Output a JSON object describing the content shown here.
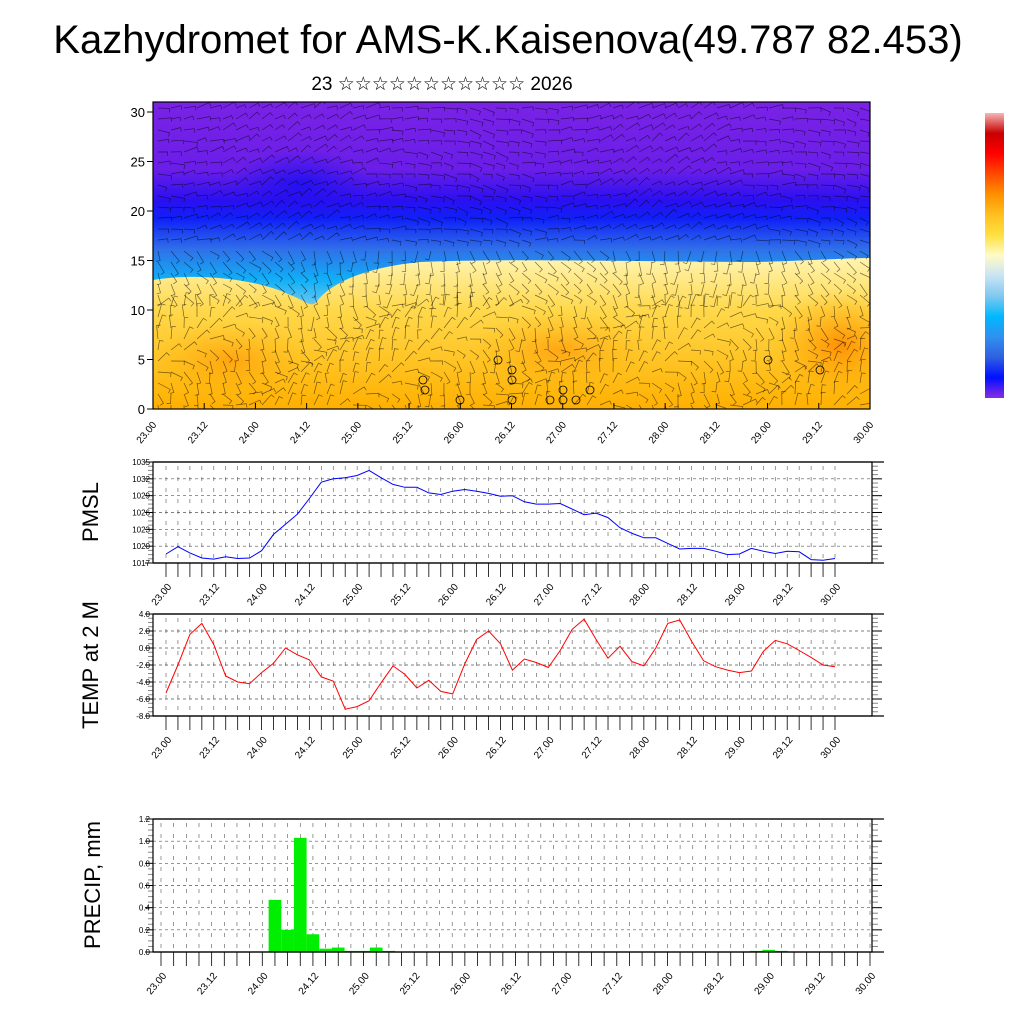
{
  "title": "Kazhydromet for AMS-K.Kaisenova(49.787 82.453)",
  "subtitle": "23 ☆☆☆☆☆☆☆☆☆☆☆ 2026",
  "x_labels": [
    "23.00",
    "23.12",
    "24.00",
    "24.12",
    "25.00",
    "25.12",
    "26.00",
    "26.12",
    "27.00",
    "27.12",
    "28.00",
    "28.12",
    "29.00",
    "29.12",
    "30.00"
  ],
  "colorbar": {
    "colors": [
      "#f7b6b6",
      "#c80000",
      "#ff0000",
      "#ff4a00",
      "#ff9000",
      "#ffc020",
      "#ffe040",
      "#fffbc8",
      "#c8e4f4",
      "#80c8ee",
      "#00b8ff",
      "#3090f0",
      "#3060e0",
      "#0010ff",
      "#8a2be2"
    ]
  },
  "chart_data": [
    {
      "type": "heatmap",
      "name": "cross-section",
      "ylabel": "",
      "yticks": [
        0,
        5,
        10,
        15,
        20,
        25,
        30
      ],
      "ylim": [
        0,
        30
      ],
      "description_colors": {
        "cold": "#7a22e6",
        "warm": "#ffa500"
      }
    },
    {
      "type": "line",
      "name": "pmsl",
      "ylabel": "PMSL",
      "yticks": [
        "1017",
        "1020",
        "1023",
        "1026",
        "1029",
        "1032",
        "1035"
      ],
      "ylim": [
        1017,
        1035
      ],
      "color": "#0000ff",
      "interval_hours": 3,
      "values": [
        1018.6,
        1019.9,
        1018.8,
        1017.9,
        1017.7,
        1018.1,
        1017.8,
        1017.9,
        1019.2,
        1022.1,
        1023.9,
        1025.7,
        1028.5,
        1031.4,
        1032.0,
        1032.2,
        1032.6,
        1033.5,
        1032.2,
        1031.0,
        1030.5,
        1030.5,
        1029.5,
        1029.2,
        1029.8,
        1030.1,
        1029.8,
        1029.4,
        1028.9,
        1029.0,
        1027.9,
        1027.5,
        1027.5,
        1027.6,
        1026.6,
        1025.6,
        1025.9,
        1025.1,
        1023.3,
        1022.3,
        1021.5,
        1021.5,
        1020.5,
        1019.5,
        1019.6,
        1019.6,
        1019.1,
        1018.5,
        1018.6,
        1019.6,
        1019.1,
        1018.7,
        1019.1,
        1019.0,
        1017.6,
        1017.5,
        1017.8
      ]
    },
    {
      "type": "line",
      "name": "temp",
      "ylabel": "TEMP at 2 M",
      "yticks": [
        "-8.0",
        "-6.0",
        "-4.0",
        "-2.0",
        "0.0",
        "2.0",
        "4.0"
      ],
      "ylim": [
        -8,
        4
      ],
      "color": "#ff0000",
      "interval_hours": 3,
      "values": [
        -5.3,
        -2.0,
        1.6,
        2.9,
        0.4,
        -3.3,
        -4.0,
        -4.2,
        -2.9,
        -1.8,
        0.0,
        -0.8,
        -1.4,
        -3.4,
        -3.9,
        -7.2,
        -6.9,
        -6.2,
        -4.1,
        -2.1,
        -3.1,
        -4.7,
        -3.8,
        -5.1,
        -5.4,
        -1.9,
        1.0,
        2.0,
        0.5,
        -2.6,
        -1.3,
        -1.7,
        -2.3,
        -0.3,
        2.2,
        3.4,
        1.0,
        -1.2,
        0.2,
        -1.6,
        -2.1,
        0.0,
        2.9,
        3.3,
        0.8,
        -1.5,
        -2.2,
        -2.6,
        -2.9,
        -2.7,
        -0.4,
        0.9,
        0.5,
        -0.3,
        -1.1,
        -2.0,
        -2.2
      ]
    },
    {
      "type": "bar",
      "name": "precip",
      "ylabel": "PRECIP, mm",
      "yticks": [
        "0.0",
        "0.2",
        "0.4",
        "0.6",
        "0.8",
        "1.0",
        "1.2"
      ],
      "ylim": [
        0,
        1.2
      ],
      "color": "#00ee00",
      "interval_hours": 3,
      "values": [
        0,
        0,
        0,
        0,
        0,
        0,
        0,
        0,
        0,
        0.47,
        0.2,
        1.03,
        0.16,
        0.03,
        0.04,
        0.01,
        0.01,
        0.04,
        0.01,
        0,
        0,
        0,
        0,
        0,
        0,
        0,
        0,
        0,
        0,
        0,
        0,
        0,
        0,
        0,
        0,
        0,
        0,
        0,
        0,
        0,
        0,
        0,
        0,
        0,
        0,
        0,
        0,
        0.01,
        0.02,
        0.01,
        0,
        0,
        0,
        0,
        0,
        0,
        0
      ]
    }
  ]
}
